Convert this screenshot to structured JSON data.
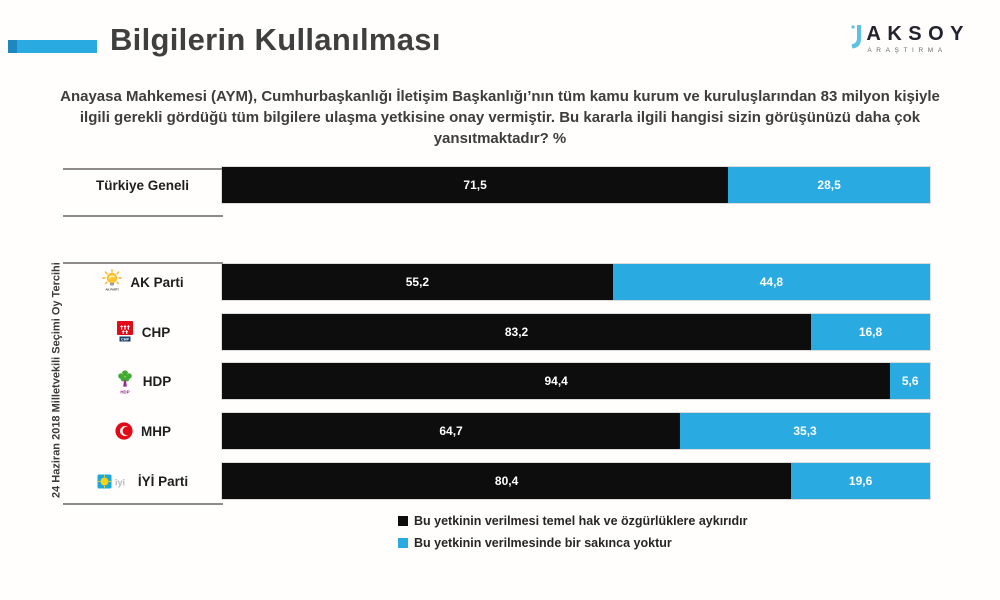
{
  "header": {
    "title": "Bilgilerin Kullanılması",
    "logo": {
      "name": "AKSOY",
      "subtitle": "ARAŞTIRMA"
    }
  },
  "question": "Anayasa Mahkemesi (AYM), Cumhurbaşkanlığı İletişim Başkanlığı’nın tüm kamu kurum ve kuruluşlarından 83 milyon kişiyle ilgili gerekli gördüğü tüm bilgilere ulaşma yetkisine onay vermiştir. Bu kararla ilgili hangisi sizin görüşünüzü daha çok yansıtmaktadır? %",
  "group_label": "24 Haziran 2018 Milletvekili Seçimi Oy Tercihi",
  "chart_data": {
    "type": "bar",
    "orientation": "horizontal_stacked",
    "unit": "%",
    "xlim": [
      0,
      100
    ],
    "legend_position": "bottom",
    "categories": [
      "Türkiye Geneli",
      "AK Parti",
      "CHP",
      "HDP",
      "MHP",
      "İYİ Parti"
    ],
    "series": [
      {
        "name": "Bu yetkinin verilmesi temel hak ve özgürlüklere aykırıdır",
        "color": "#0d0d0d",
        "values": [
          71.5,
          55.2,
          83.2,
          94.4,
          64.7,
          80.4
        ]
      },
      {
        "name": "Bu yetkinin verilmesinde bir sakınca yoktur",
        "color": "#29abe2",
        "values": [
          28.5,
          44.8,
          16.8,
          5.6,
          35.3,
          19.6
        ]
      }
    ],
    "value_labels": [
      [
        "71,5",
        "28,5"
      ],
      [
        "55,2",
        "44,8"
      ],
      [
        "83,2",
        "16,8"
      ],
      [
        "94,4",
        "5,6"
      ],
      [
        "64,7",
        "35,3"
      ],
      [
        "80,4",
        "19,6"
      ]
    ]
  },
  "legend": {
    "items": [
      {
        "label": "Bu yetkinin verilmesi temel hak ve özgürlüklere aykırıdır",
        "color": "#0d0d0d"
      },
      {
        "label": "Bu yetkinin verilmesinde bir sakınca yoktur",
        "color": "#29abe2"
      }
    ]
  },
  "party_logo_texts": {
    "akparti": "AK PARTİ",
    "chp": "CHP",
    "hdp": "HDP",
    "iyi": "iyi"
  },
  "colors": {
    "accent_blue": "#29abe2",
    "bar_black": "#0d0d0d",
    "title_gray": "#3f3f3f"
  }
}
